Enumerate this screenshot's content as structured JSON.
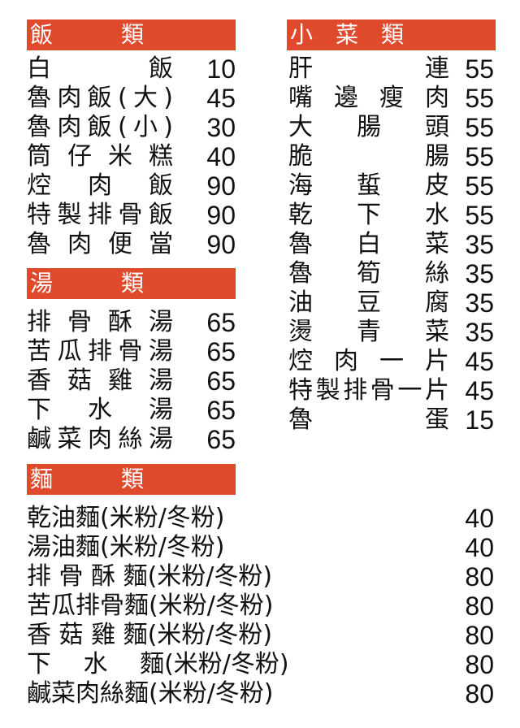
{
  "rice": {
    "header": "飯　　類",
    "items": [
      {
        "name": "白飯",
        "price": "10"
      },
      {
        "name": "魯肉飯(大)",
        "price": "45"
      },
      {
        "name": "魯肉飯(小)",
        "price": "30"
      },
      {
        "name": "筒仔米糕",
        "price": "40"
      },
      {
        "name": "焢肉飯",
        "price": "90"
      },
      {
        "name": "特製排骨飯",
        "price": "90"
      },
      {
        "name": "魯肉便當",
        "price": "90"
      }
    ]
  },
  "soup": {
    "header": "湯　　類",
    "items": [
      {
        "name": "排骨酥湯",
        "price": "65"
      },
      {
        "name": "苦瓜排骨湯",
        "price": "65"
      },
      {
        "name": "香菇雞湯",
        "price": "65"
      },
      {
        "name": "下水湯",
        "price": "65"
      },
      {
        "name": "鹹菜肉絲湯",
        "price": "65"
      }
    ]
  },
  "noodles": {
    "header": "麵　　類",
    "items": [
      {
        "name": "乾油麵(米粉/冬粉)",
        "price": "40"
      },
      {
        "name": "湯油麵(米粉/冬粉)",
        "price": "40"
      },
      {
        "name": "排 骨 酥 麵(米粉/冬粉)",
        "price": "80"
      },
      {
        "name": "苦瓜排骨麵(米粉/冬粉)",
        "price": "80"
      },
      {
        "name": "香 菇 雞 麵(米粉/冬粉)",
        "price": "80"
      },
      {
        "name": "下　 水　 麵(米粉/冬粉)",
        "price": "80"
      },
      {
        "name": "鹹菜肉絲麵(米粉/冬粉)",
        "price": "80"
      }
    ]
  },
  "sides": {
    "header": "小菜類",
    "items": [
      {
        "name": "肝連",
        "price": "55"
      },
      {
        "name": "嘴邊瘦肉",
        "price": "55"
      },
      {
        "name": "大腸頭",
        "price": "55"
      },
      {
        "name": "脆腸",
        "price": "55"
      },
      {
        "name": "海蜇皮",
        "price": "55"
      },
      {
        "name": "乾下水",
        "price": "55"
      },
      {
        "name": "魯白菜",
        "price": "35"
      },
      {
        "name": "魯筍絲",
        "price": "35"
      },
      {
        "name": "油豆腐",
        "price": "35"
      },
      {
        "name": "燙青菜",
        "price": "35"
      },
      {
        "name": "焢肉一片",
        "price": "45"
      },
      {
        "name": "特製排骨一片",
        "price": "45"
      },
      {
        "name": "魯蛋",
        "price": "15"
      }
    ]
  },
  "colors": {
    "header_bg": "#e04a2c",
    "header_text": "#ffffff"
  }
}
